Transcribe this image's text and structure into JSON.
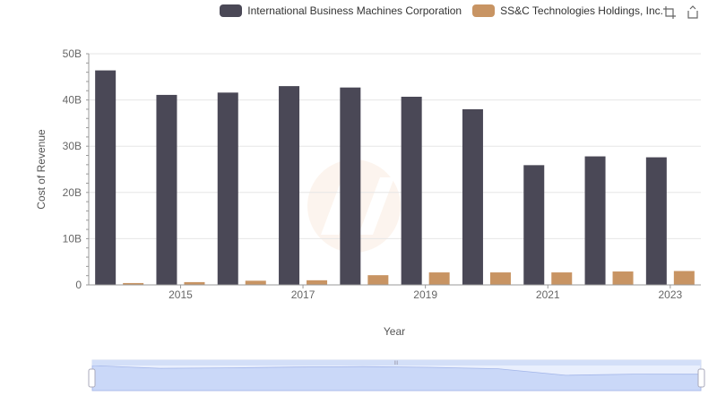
{
  "chart_data": {
    "type": "bar",
    "title": "",
    "xlabel": "Year",
    "ylabel": "Cost of Revenue",
    "ylim": [
      0,
      50000000000
    ],
    "yticks": [
      0,
      10000000000,
      20000000000,
      30000000000,
      40000000000,
      50000000000
    ],
    "ytick_labels": [
      "0",
      "10B",
      "20B",
      "30B",
      "40B",
      "50B"
    ],
    "categories": [
      "2014",
      "2015",
      "2016",
      "2017",
      "2018",
      "2019",
      "2020",
      "2021",
      "2022",
      "2023"
    ],
    "xtick_labels_shown": [
      "2015",
      "2017",
      "2019",
      "2021",
      "2023"
    ],
    "series": [
      {
        "name": "International Business Machines Corporation",
        "color": "#4a4856",
        "values": [
          46400000000,
          41100000000,
          41600000000,
          43000000000,
          42700000000,
          40700000000,
          38000000000,
          25900000000,
          27800000000,
          27600000000
        ]
      },
      {
        "name": "SS&C Technologies Holdings, Inc.",
        "color": "#c89463",
        "values": [
          400000000,
          600000000,
          900000000,
          1000000000,
          2100000000,
          2700000000,
          2700000000,
          2700000000,
          2900000000,
          3000000000
        ]
      }
    ],
    "grid": true,
    "legend_position": "top-right",
    "zoom_slider": {
      "start": 0,
      "end": 100
    }
  },
  "toolbox": {
    "zoom_icon": "zoom-select-icon",
    "restore_icon": "restore-icon"
  }
}
